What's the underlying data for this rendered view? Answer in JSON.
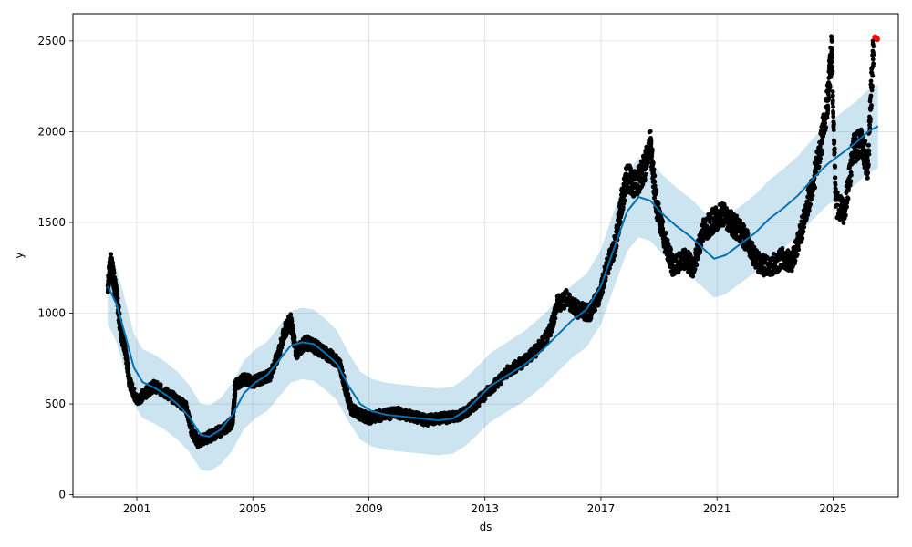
{
  "chart_data": {
    "type": "scatter",
    "xlabel": "ds",
    "ylabel": "y",
    "xlim": [
      1998.8,
      2027.25
    ],
    "ylim": [
      -12,
      2650
    ],
    "x_ticks": [
      {
        "value": 2001,
        "label": "2001"
      },
      {
        "value": 2005,
        "label": "2005"
      },
      {
        "value": 2009,
        "label": "2009"
      },
      {
        "value": 2013,
        "label": "2013"
      },
      {
        "value": 2017,
        "label": "2017"
      },
      {
        "value": 2021,
        "label": "2021"
      },
      {
        "value": 2025,
        "label": "2025"
      }
    ],
    "y_ticks": [
      {
        "value": 0,
        "label": "0"
      },
      {
        "value": 500,
        "label": "500"
      },
      {
        "value": 1000,
        "label": "1000"
      },
      {
        "value": 1500,
        "label": "1500"
      },
      {
        "value": 2000,
        "label": "2000"
      },
      {
        "value": 2500,
        "label": "2500"
      }
    ],
    "grid": true,
    "colors": {
      "observed": "#000000",
      "recent": "#ff0000",
      "forecast_line": "#0072b2",
      "uncertainty_band": "#0072b2"
    },
    "observed_series": [
      [
        2000.0,
        1150
      ],
      [
        2000.1,
        1280
      ],
      [
        2000.2,
        1200
      ],
      [
        2000.3,
        1100
      ],
      [
        2000.45,
        900
      ],
      [
        2000.6,
        800
      ],
      [
        2000.75,
        620
      ],
      [
        2001.0,
        520
      ],
      [
        2001.3,
        560
      ],
      [
        2001.6,
        600
      ],
      [
        2002.0,
        560
      ],
      [
        2002.4,
        520
      ],
      [
        2002.7,
        480
      ],
      [
        2002.9,
        350
      ],
      [
        2003.1,
        290
      ],
      [
        2003.5,
        320
      ],
      [
        2004.0,
        360
      ],
      [
        2004.3,
        400
      ],
      [
        2004.4,
        600
      ],
      [
        2004.7,
        640
      ],
      [
        2005.0,
        620
      ],
      [
        2005.3,
        640
      ],
      [
        2005.6,
        660
      ],
      [
        2005.9,
        780
      ],
      [
        2006.1,
        900
      ],
      [
        2006.3,
        960
      ],
      [
        2006.5,
        780
      ],
      [
        2006.8,
        840
      ],
      [
        2007.1,
        820
      ],
      [
        2007.4,
        790
      ],
      [
        2007.7,
        760
      ],
      [
        2008.0,
        720
      ],
      [
        2008.2,
        580
      ],
      [
        2008.4,
        470
      ],
      [
        2008.6,
        450
      ],
      [
        2009.0,
        420
      ],
      [
        2009.5,
        440
      ],
      [
        2010.0,
        450
      ],
      [
        2010.5,
        430
      ],
      [
        2011.0,
        410
      ],
      [
        2011.5,
        420
      ],
      [
        2012.0,
        430
      ],
      [
        2012.4,
        460
      ],
      [
        2012.8,
        520
      ],
      [
        2013.3,
        600
      ],
      [
        2013.8,
        680
      ],
      [
        2014.3,
        730
      ],
      [
        2014.8,
        800
      ],
      [
        2015.2,
        880
      ],
      [
        2015.5,
        1050
      ],
      [
        2015.8,
        1080
      ],
      [
        2016.2,
        1020
      ],
      [
        2016.6,
        1000
      ],
      [
        2016.9,
        1080
      ],
      [
        2017.2,
        1250
      ],
      [
        2017.5,
        1380
      ],
      [
        2017.7,
        1600
      ],
      [
        2017.9,
        1750
      ],
      [
        2018.2,
        1700
      ],
      [
        2018.5,
        1800
      ],
      [
        2018.7,
        1950
      ],
      [
        2018.9,
        1600
      ],
      [
        2019.2,
        1400
      ],
      [
        2019.5,
        1250
      ],
      [
        2019.9,
        1300
      ],
      [
        2020.2,
        1250
      ],
      [
        2020.5,
        1450
      ],
      [
        2020.8,
        1500
      ],
      [
        2021.2,
        1550
      ],
      [
        2021.5,
        1500
      ],
      [
        2021.8,
        1450
      ],
      [
        2022.1,
        1380
      ],
      [
        2022.4,
        1280
      ],
      [
        2022.8,
        1250
      ],
      [
        2023.2,
        1300
      ],
      [
        2023.6,
        1290
      ],
      [
        2023.9,
        1450
      ],
      [
        2024.2,
        1650
      ],
      [
        2024.5,
        1850
      ],
      [
        2024.8,
        2150
      ],
      [
        2024.95,
        2450
      ],
      [
        2025.1,
        1600
      ],
      [
        2025.4,
        1560
      ],
      [
        2025.7,
        1900
      ],
      [
        2026.0,
        1950
      ],
      [
        2026.2,
        1800
      ],
      [
        2026.4,
        2520
      ]
    ],
    "recent_points": [
      [
        2026.45,
        2520
      ],
      [
        2026.5,
        2515
      ],
      [
        2026.52,
        2510
      ]
    ],
    "forecast_line": [
      [
        2000.0,
        1150
      ],
      [
        2000.3,
        1050
      ],
      [
        2000.6,
        880
      ],
      [
        2000.9,
        700
      ],
      [
        2001.2,
        620
      ],
      [
        2001.6,
        590
      ],
      [
        2002.0,
        550
      ],
      [
        2002.4,
        500
      ],
      [
        2002.8,
        430
      ],
      [
        2003.2,
        330
      ],
      [
        2003.5,
        320
      ],
      [
        2003.9,
        360
      ],
      [
        2004.3,
        440
      ],
      [
        2004.7,
        560
      ],
      [
        2005.1,
        620
      ],
      [
        2005.5,
        660
      ],
      [
        2005.9,
        740
      ],
      [
        2006.3,
        820
      ],
      [
        2006.7,
        840
      ],
      [
        2007.1,
        830
      ],
      [
        2007.5,
        780
      ],
      [
        2007.9,
        720
      ],
      [
        2008.3,
        600
      ],
      [
        2008.7,
        500
      ],
      [
        2009.1,
        460
      ],
      [
        2009.6,
        440
      ],
      [
        2010.2,
        430
      ],
      [
        2010.8,
        420
      ],
      [
        2011.4,
        410
      ],
      [
        2011.9,
        420
      ],
      [
        2012.3,
        460
      ],
      [
        2012.7,
        520
      ],
      [
        2013.2,
        600
      ],
      [
        2013.8,
        660
      ],
      [
        2014.4,
        720
      ],
      [
        2015.0,
        800
      ],
      [
        2015.5,
        880
      ],
      [
        2016.0,
        960
      ],
      [
        2016.5,
        1020
      ],
      [
        2017.0,
        1150
      ],
      [
        2017.5,
        1380
      ],
      [
        2017.9,
        1560
      ],
      [
        2018.3,
        1640
      ],
      [
        2018.7,
        1620
      ],
      [
        2019.1,
        1550
      ],
      [
        2019.6,
        1480
      ],
      [
        2020.1,
        1420
      ],
      [
        2020.5,
        1360
      ],
      [
        2020.9,
        1300
      ],
      [
        2021.3,
        1320
      ],
      [
        2021.8,
        1380
      ],
      [
        2022.3,
        1440
      ],
      [
        2022.8,
        1520
      ],
      [
        2023.3,
        1580
      ],
      [
        2023.8,
        1650
      ],
      [
        2024.3,
        1740
      ],
      [
        2024.8,
        1820
      ],
      [
        2025.3,
        1880
      ],
      [
        2025.8,
        1940
      ],
      [
        2026.2,
        2000
      ],
      [
        2026.55,
        2030
      ]
    ],
    "uncertainty_halfwidth": 230
  }
}
